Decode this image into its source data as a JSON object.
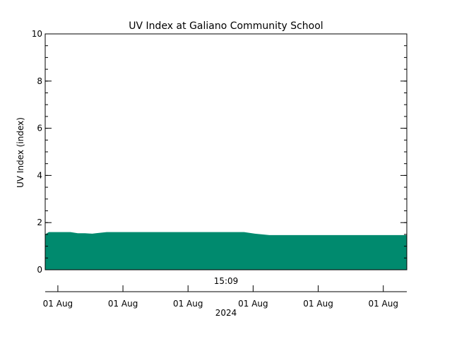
{
  "chart_data": {
    "type": "area",
    "title": "UV Index at Galiano Community School",
    "ylabel": "UV Index (index)",
    "ylim": [
      0,
      10
    ],
    "yticks": [
      0,
      2,
      4,
      6,
      8,
      10
    ],
    "y_minor_step": 0.5,
    "time_label": "15:09",
    "year_label": "2024",
    "x_tick_labels": [
      "01 Aug",
      "01 Aug",
      "01 Aug",
      "01 Aug",
      "01 Aug",
      "01 Aug"
    ],
    "x_range": [
      0,
      100
    ],
    "x_ticks": [
      3.5,
      21.5,
      39.5,
      57.5,
      75.5,
      93.5
    ],
    "x": [
      0,
      1,
      7,
      9,
      11,
      13,
      14,
      17,
      55,
      58,
      60,
      62,
      100
    ],
    "values": [
      1.5,
      1.6,
      1.6,
      1.55,
      1.55,
      1.53,
      1.55,
      1.6,
      1.6,
      1.53,
      1.5,
      1.47,
      1.47
    ],
    "fill_color": "#008a6e",
    "grid": false
  }
}
